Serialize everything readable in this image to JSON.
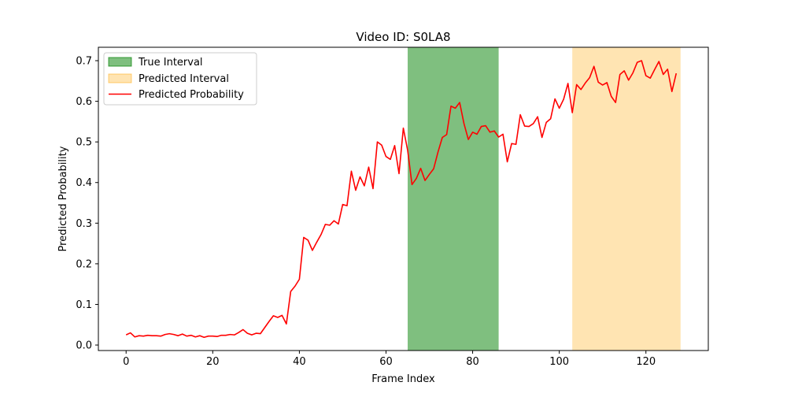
{
  "chart_data": {
    "type": "line",
    "title": "Video ID: S0LA8",
    "xlabel": "Frame Index",
    "ylabel": "Predicted Probability",
    "xlim": [
      -6.4,
      134.4
    ],
    "ylim": [
      -0.0135,
      0.733
    ],
    "xticks": [
      0,
      20,
      40,
      60,
      80,
      100,
      120
    ],
    "yticks": [
      0.0,
      0.1,
      0.2,
      0.3,
      0.4,
      0.5,
      0.6,
      0.7
    ],
    "xtick_labels": [
      "0",
      "20",
      "40",
      "60",
      "80",
      "100",
      "120"
    ],
    "ytick_labels": [
      "0.0",
      "0.1",
      "0.2",
      "0.3",
      "0.4",
      "0.5",
      "0.6",
      "0.7"
    ],
    "grid": false,
    "legend_position": "upper-left",
    "intervals": [
      {
        "name": "True Interval",
        "start": 65,
        "end": 86,
        "color": "#008000",
        "opacity": 0.5
      },
      {
        "name": "Predicted Interval",
        "start": 103,
        "end": 128,
        "color": "#ffa500",
        "opacity": 0.3
      }
    ],
    "series": [
      {
        "name": "Predicted Probability",
        "color": "#ff0000",
        "x_start": 0,
        "x_step": 1,
        "values": [
          0.025,
          0.03,
          0.02,
          0.023,
          0.022,
          0.024,
          0.023,
          0.023,
          0.022,
          0.026,
          0.028,
          0.026,
          0.023,
          0.027,
          0.022,
          0.024,
          0.02,
          0.023,
          0.019,
          0.022,
          0.022,
          0.021,
          0.024,
          0.024,
          0.026,
          0.025,
          0.031,
          0.038,
          0.029,
          0.025,
          0.029,
          0.028,
          0.043,
          0.058,
          0.072,
          0.068,
          0.073,
          0.052,
          0.132,
          0.145,
          0.162,
          0.265,
          0.258,
          0.233,
          0.253,
          0.272,
          0.297,
          0.295,
          0.306,
          0.298,
          0.346,
          0.343,
          0.428,
          0.381,
          0.414,
          0.392,
          0.438,
          0.385,
          0.5,
          0.492,
          0.464,
          0.457,
          0.491,
          0.422,
          0.534,
          0.479,
          0.395,
          0.41,
          0.435,
          0.405,
          0.42,
          0.434,
          0.475,
          0.511,
          0.518,
          0.588,
          0.583,
          0.597,
          0.545,
          0.506,
          0.524,
          0.519,
          0.538,
          0.54,
          0.524,
          0.527,
          0.512,
          0.519,
          0.451,
          0.496,
          0.494,
          0.567,
          0.539,
          0.538,
          0.545,
          0.562,
          0.511,
          0.548,
          0.557,
          0.606,
          0.583,
          0.605,
          0.644,
          0.572,
          0.641,
          0.629,
          0.645,
          0.658,
          0.686,
          0.647,
          0.64,
          0.646,
          0.612,
          0.597,
          0.666,
          0.675,
          0.652,
          0.67,
          0.696,
          0.7,
          0.663,
          0.657,
          0.678,
          0.698,
          0.666,
          0.679,
          0.624,
          0.669
        ]
      }
    ]
  }
}
